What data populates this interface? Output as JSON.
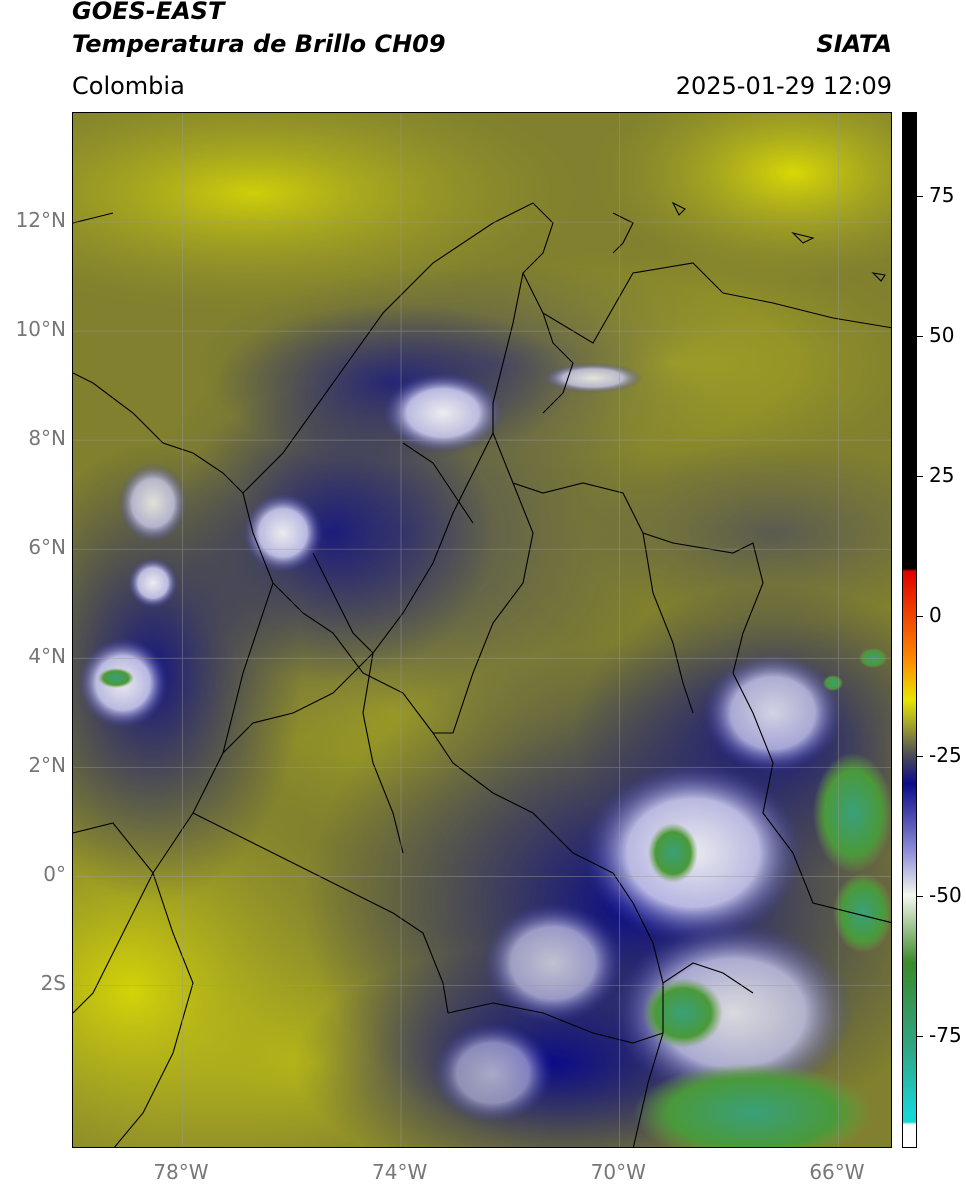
{
  "header": {
    "satellite": "GOES-EAST",
    "product": "Temperatura de Brillo CH09",
    "region": "Colombia",
    "agency": "SIATA",
    "datetime": "2025-01-29 12:09"
  },
  "map": {
    "lon_range": [
      -80,
      -65
    ],
    "lat_range": [
      -5,
      14
    ],
    "lat_ticks": [
      {
        "value": 12,
        "label": "12°N"
      },
      {
        "value": 10,
        "label": "10°N"
      },
      {
        "value": 8,
        "label": "8°N"
      },
      {
        "value": 6,
        "label": "6°N"
      },
      {
        "value": 4,
        "label": "4°N"
      },
      {
        "value": 2,
        "label": "2°N"
      },
      {
        "value": 0,
        "label": "0°"
      },
      {
        "value": -2,
        "label": "2S"
      }
    ],
    "lon_ticks": [
      {
        "value": -78,
        "label": "78°W"
      },
      {
        "value": -74,
        "label": "74°W"
      },
      {
        "value": -70,
        "label": "70°W"
      },
      {
        "value": -66,
        "label": "66°W"
      }
    ],
    "gridlines": true
  },
  "colorbar": {
    "range": [
      -95,
      90
    ],
    "ticks": [
      {
        "value": 75,
        "label": "75"
      },
      {
        "value": 50,
        "label": "50"
      },
      {
        "value": 25,
        "label": "25"
      },
      {
        "value": 0,
        "label": "0"
      },
      {
        "value": -25,
        "label": "-25"
      },
      {
        "value": -50,
        "label": "-50"
      },
      {
        "value": -75,
        "label": "-75"
      }
    ],
    "colors": {
      "white_low": "#ffffff",
      "cyan": "#17d6d6",
      "teal": "#2fa88a",
      "green": "#3c8a2a",
      "white_mid": "#f4f8ec",
      "blue_white": "#8d8dd8",
      "navy": "#0c0c8a",
      "olive_dark": "#4a4a5a",
      "olive": "#9a9a30",
      "yellow": "#e6e600",
      "orange": "#ff8c00",
      "red": "#e00000",
      "black": "#000000"
    }
  }
}
